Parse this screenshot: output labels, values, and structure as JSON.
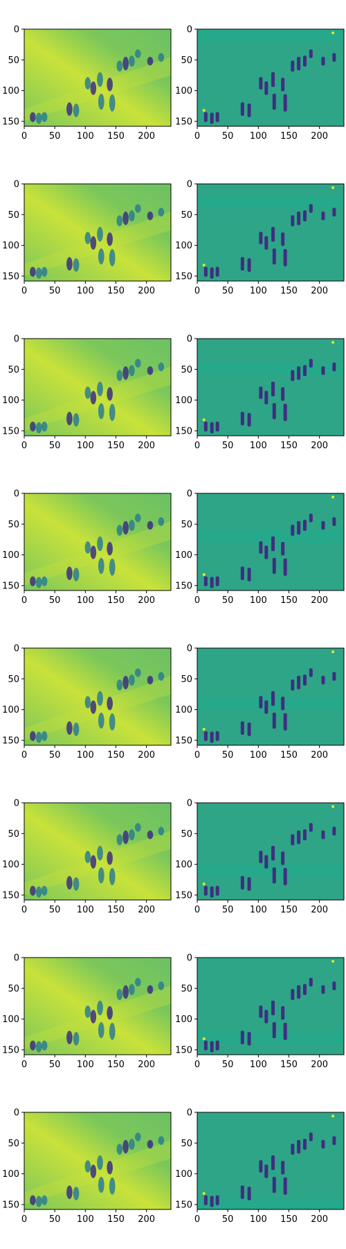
{
  "figure": {
    "rows": 8,
    "cols": 2,
    "colormap": "viridis"
  },
  "colors": {
    "left_background": "#7cc75a",
    "left_highlight": "#c9e23a",
    "left_figure": "#2c7e8e",
    "left_dark": "#3b2f80",
    "right_background": "#2ea587",
    "right_figure": "#3d2f80",
    "right_band": "#25a98a",
    "highlight_point": "#f5e31f"
  },
  "chart_data": [
    {
      "type": "heatmap",
      "panel": "reconstruction",
      "row": 1,
      "xlim": [
        0,
        240
      ],
      "ylim": [
        158,
        0
      ],
      "xticks": [
        "0",
        "50",
        "100",
        "150",
        "200"
      ],
      "yticks": [
        "0",
        "50",
        "100",
        "150"
      ],
      "band_y": null
    },
    {
      "type": "heatmap",
      "panel": "difference",
      "row": 1,
      "xlim": [
        0,
        240
      ],
      "ylim": [
        158,
        0
      ],
      "xticks": [
        "0",
        "50",
        "100",
        "150",
        "200"
      ],
      "yticks": [
        "0",
        "50",
        "100",
        "150"
      ],
      "band_y": [
        0,
        20
      ]
    },
    {
      "type": "heatmap",
      "panel": "reconstruction",
      "row": 2,
      "xlim": [
        0,
        240
      ],
      "ylim": [
        158,
        0
      ],
      "xticks": [
        "0",
        "50",
        "100",
        "150",
        "200"
      ],
      "yticks": [
        "0",
        "50",
        "100",
        "150"
      ],
      "band_y": null
    },
    {
      "type": "heatmap",
      "panel": "difference",
      "row": 2,
      "xlim": [
        0,
        240
      ],
      "ylim": [
        158,
        0
      ],
      "xticks": [
        "0",
        "50",
        "100",
        "150",
        "200"
      ],
      "yticks": [
        "0",
        "50",
        "100",
        "150"
      ],
      "band_y": [
        20,
        40
      ]
    },
    {
      "type": "heatmap",
      "panel": "reconstruction",
      "row": 3,
      "xlim": [
        0,
        240
      ],
      "ylim": [
        158,
        0
      ],
      "xticks": [
        "0",
        "50",
        "100",
        "150",
        "200"
      ],
      "yticks": [
        "0",
        "50",
        "100",
        "150"
      ],
      "band_y": null
    },
    {
      "type": "heatmap",
      "panel": "difference",
      "row": 3,
      "xlim": [
        0,
        240
      ],
      "ylim": [
        158,
        0
      ],
      "xticks": [
        "0",
        "50",
        "100",
        "150",
        "200"
      ],
      "yticks": [
        "0",
        "50",
        "100",
        "150"
      ],
      "band_y": [
        40,
        60
      ]
    },
    {
      "type": "heatmap",
      "panel": "reconstruction",
      "row": 4,
      "xlim": [
        0,
        240
      ],
      "ylim": [
        158,
        0
      ],
      "xticks": [
        "0",
        "50",
        "100",
        "150",
        "200"
      ],
      "yticks": [
        "0",
        "50",
        "100",
        "150"
      ],
      "band_y": null
    },
    {
      "type": "heatmap",
      "panel": "difference",
      "row": 4,
      "xlim": [
        0,
        240
      ],
      "ylim": [
        158,
        0
      ],
      "xticks": [
        "0",
        "50",
        "100",
        "150",
        "200"
      ],
      "yticks": [
        "0",
        "50",
        "100",
        "150"
      ],
      "band_y": [
        60,
        80
      ]
    },
    {
      "type": "heatmap",
      "panel": "reconstruction",
      "row": 5,
      "xlim": [
        0,
        240
      ],
      "ylim": [
        158,
        0
      ],
      "xticks": [
        "0",
        "50",
        "100",
        "150",
        "200"
      ],
      "yticks": [
        "0",
        "50",
        "100",
        "150"
      ],
      "band_y": null
    },
    {
      "type": "heatmap",
      "panel": "difference",
      "row": 5,
      "xlim": [
        0,
        240
      ],
      "ylim": [
        158,
        0
      ],
      "xticks": [
        "0",
        "50",
        "100",
        "150",
        "200"
      ],
      "yticks": [
        "0",
        "50",
        "100",
        "150"
      ],
      "band_y": [
        80,
        100
      ]
    },
    {
      "type": "heatmap",
      "panel": "reconstruction",
      "row": 6,
      "xlim": [
        0,
        240
      ],
      "ylim": [
        158,
        0
      ],
      "xticks": [
        "0",
        "50",
        "100",
        "150",
        "200"
      ],
      "yticks": [
        "0",
        "50",
        "100",
        "150"
      ],
      "band_y": null
    },
    {
      "type": "heatmap",
      "panel": "difference",
      "row": 6,
      "xlim": [
        0,
        240
      ],
      "ylim": [
        158,
        0
      ],
      "xticks": [
        "0",
        "50",
        "100",
        "150",
        "200"
      ],
      "yticks": [
        "0",
        "50",
        "100",
        "150"
      ],
      "band_y": [
        100,
        120
      ]
    },
    {
      "type": "heatmap",
      "panel": "reconstruction",
      "row": 7,
      "xlim": [
        0,
        240
      ],
      "ylim": [
        158,
        0
      ],
      "xticks": [
        "0",
        "50",
        "100",
        "150",
        "200"
      ],
      "yticks": [
        "0",
        "50",
        "100",
        "150"
      ],
      "band_y": null
    },
    {
      "type": "heatmap",
      "panel": "difference",
      "row": 7,
      "xlim": [
        0,
        240
      ],
      "ylim": [
        158,
        0
      ],
      "xticks": [
        "0",
        "50",
        "100",
        "150",
        "200"
      ],
      "yticks": [
        "0",
        "50",
        "100",
        "150"
      ],
      "band_y": [
        120,
        140
      ]
    },
    {
      "type": "heatmap",
      "panel": "reconstruction",
      "row": 8,
      "xlim": [
        0,
        240
      ],
      "ylim": [
        158,
        0
      ],
      "xticks": [
        "0",
        "50",
        "100",
        "150",
        "200"
      ],
      "yticks": [
        "0",
        "50",
        "100",
        "150"
      ],
      "band_y": null
    },
    {
      "type": "heatmap",
      "panel": "difference",
      "row": 8,
      "xlim": [
        0,
        240
      ],
      "ylim": [
        158,
        0
      ],
      "xticks": [
        "0",
        "50",
        "100",
        "150",
        "200"
      ],
      "yticks": [
        "0",
        "50",
        "100",
        "150"
      ],
      "band_y": [
        140,
        158
      ]
    }
  ],
  "scene": {
    "figures": [
      {
        "x": 14,
        "y": 143,
        "h": 16
      },
      {
        "x": 24,
        "y": 145,
        "h": 18
      },
      {
        "x": 33,
        "y": 143,
        "h": 16
      },
      {
        "x": 74,
        "y": 130,
        "h": 22
      },
      {
        "x": 85,
        "y": 132,
        "h": 22
      },
      {
        "x": 104,
        "y": 88,
        "h": 20
      },
      {
        "x": 113,
        "y": 96,
        "h": 22
      },
      {
        "x": 124,
        "y": 82,
        "h": 24
      },
      {
        "x": 126,
        "y": 118,
        "h": 26
      },
      {
        "x": 140,
        "y": 90,
        "h": 22
      },
      {
        "x": 144,
        "y": 120,
        "h": 28
      },
      {
        "x": 156,
        "y": 60,
        "h": 18
      },
      {
        "x": 166,
        "y": 56,
        "h": 22
      },
      {
        "x": 176,
        "y": 52,
        "h": 18
      },
      {
        "x": 186,
        "y": 40,
        "h": 14
      },
      {
        "x": 206,
        "y": 52,
        "h": 14
      },
      {
        "x": 224,
        "y": 46,
        "h": 14
      }
    ],
    "highlights": [
      {
        "x": 11,
        "y": 132
      },
      {
        "x": 222,
        "y": 6
      }
    ]
  }
}
